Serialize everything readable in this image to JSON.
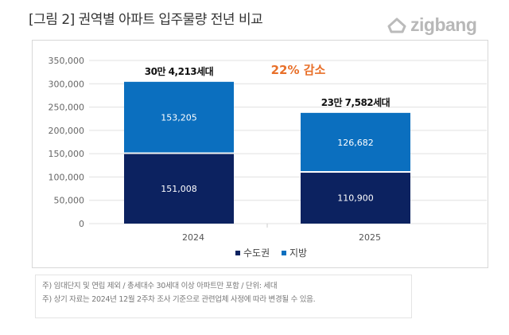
{
  "title": "[그림 2] 권역별 아파트 입주물량 전년 비교",
  "logo": "zigbang",
  "chart_data": {
    "type": "stacked-bar",
    "title": "",
    "categories": [
      "2024",
      "2025"
    ],
    "series": [
      {
        "name": "수도권",
        "values": [
          151008,
          110900
        ],
        "color": "#0c2260"
      },
      {
        "name": "지방",
        "values": [
          153205,
          126682
        ],
        "color": "#0b6fbf"
      }
    ],
    "totals_labels": [
      "30만 4,213세대",
      "23만 7,582세대"
    ],
    "annotation": "22% 감소",
    "annotation_color": "#e8702a",
    "ylim": [
      0,
      350000
    ],
    "yticks": [
      "0",
      "50,000",
      "100,000",
      "150,000",
      "200,000",
      "250,000",
      "300,000",
      "350,000"
    ],
    "grid": true,
    "legend_position": "bottom"
  },
  "notes": [
    "주) 임대단지 및 연립 제외 / 총세대수 30세대 이상 아파트만 포함 / 단위: 세대",
    "주) 상기 자료는 2024년 12월 2주차 조사 기준으로 관련업체 사정에 따라 변경될 수 있음."
  ]
}
